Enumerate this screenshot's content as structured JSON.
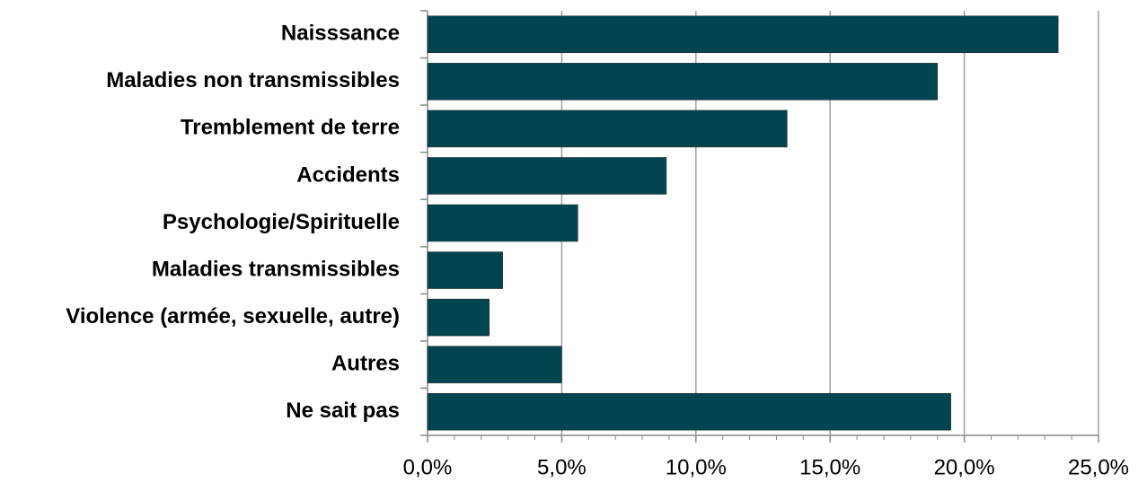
{
  "chart_data": {
    "type": "hbar",
    "categories": [
      "Naisssance",
      "Maladies non transmissibles",
      "Tremblement de terre",
      "Accidents",
      "Psychologie/Spirituelle",
      "Maladies transmissibles",
      "Violence (armée, sexuelle, autre)",
      "Autres",
      "Ne sait pas"
    ],
    "values": [
      23.5,
      19.0,
      13.4,
      8.9,
      5.6,
      2.8,
      2.3,
      5.0,
      19.5
    ],
    "color": "#024450",
    "xlim": [
      0,
      25
    ],
    "xticks": [
      {
        "value": 0,
        "label": "0,0%"
      },
      {
        "value": 5,
        "label": "5,0%"
      },
      {
        "value": 10,
        "label": "10,0%"
      },
      {
        "value": 15,
        "label": "15,0%"
      },
      {
        "value": 20,
        "label": "20,0%"
      },
      {
        "value": 25,
        "label": "25,0%"
      }
    ],
    "grid": true
  }
}
